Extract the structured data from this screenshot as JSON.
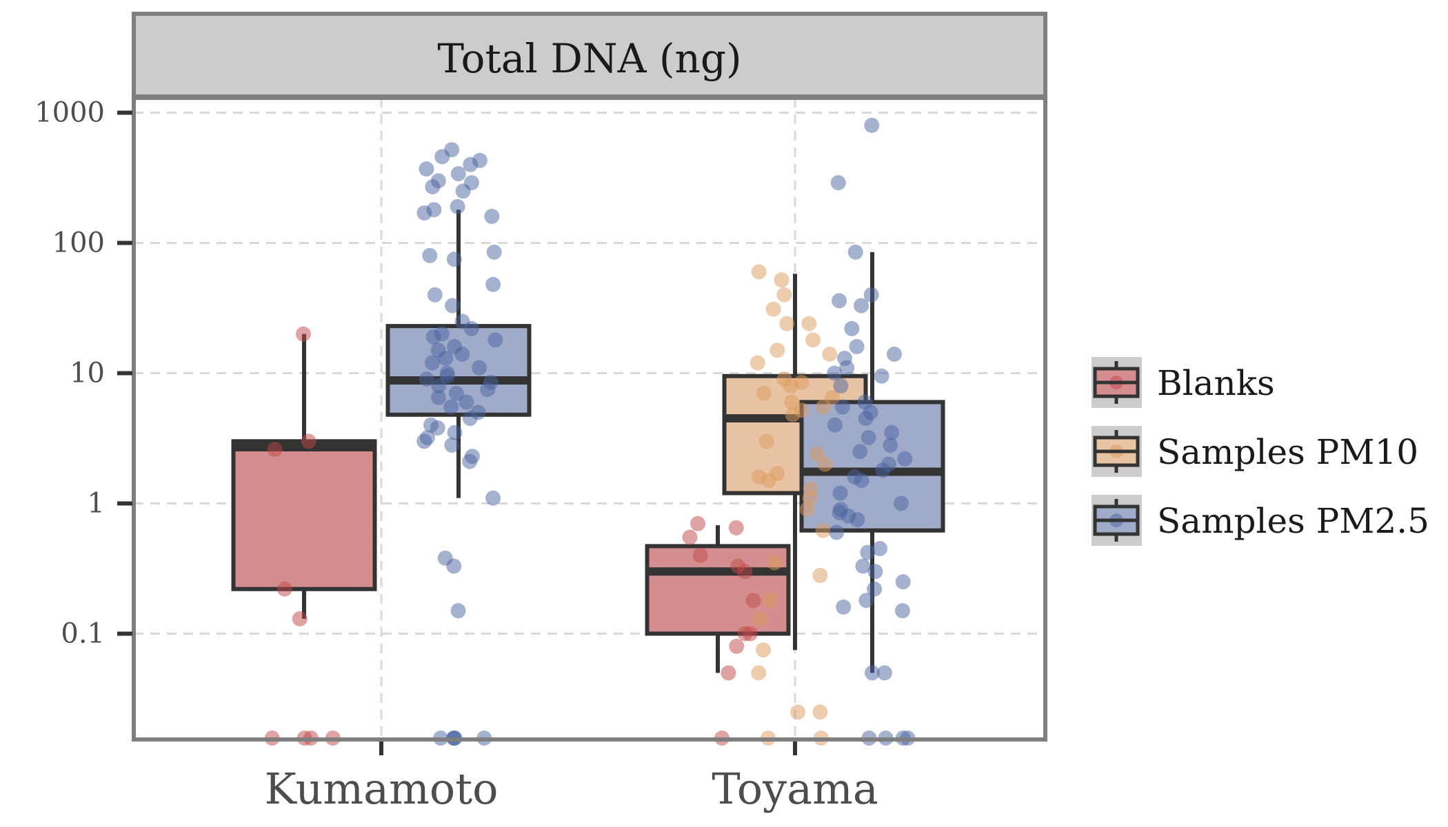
{
  "chart_data": {
    "type": "box",
    "title": "Total DNA (ng)",
    "xlabel": "",
    "ylabel": "",
    "yscale": "log10",
    "ylim": [
      0.0154,
      1300
    ],
    "yticks": [
      0.1,
      1,
      10,
      100,
      1000
    ],
    "ytick_labels": [
      "0.1",
      "1",
      "10",
      "100",
      "1000"
    ],
    "categories": [
      "Kumamoto",
      "Toyama"
    ],
    "grid": true,
    "legend": {
      "position": "right",
      "entries": [
        {
          "name": "Blanks",
          "color": "#c0474a"
        },
        {
          "name": "Samples PM10",
          "color": "#dd9a5e"
        },
        {
          "name": "Samples PM2.5",
          "color": "#4a64a0"
        }
      ]
    },
    "groups": [
      {
        "category": "Kumamoto",
        "series": "Blanks",
        "box": {
          "whisker_low": 0.13,
          "q1": 0.22,
          "median": 2.7,
          "q3": 3.0,
          "whisker_high": 20
        },
        "points": [
          20,
          3.0,
          2.6,
          0.22,
          0.13,
          0.015,
          0.015,
          0.015,
          0.015
        ]
      },
      {
        "category": "Kumamoto",
        "series": "Samples PM2.5",
        "box": {
          "whisker_low": 1.1,
          "q1": 4.8,
          "median": 8.8,
          "q3": 23,
          "whisker_high": 180
        },
        "points": [
          520,
          460,
          430,
          400,
          370,
          340,
          300,
          290,
          270,
          250,
          190,
          180,
          170,
          160,
          85,
          80,
          75,
          48,
          40,
          33,
          25,
          22,
          20,
          19,
          18,
          16,
          15,
          14,
          13,
          12,
          11,
          10,
          9.5,
          9,
          8.5,
          8,
          7.5,
          7,
          6.5,
          6,
          5.5,
          5,
          4.5,
          4,
          3.8,
          3.5,
          3.2,
          3.0,
          2.8,
          2.3,
          2.1,
          1.1,
          0.38,
          0.33,
          0.15,
          0.015,
          0.015,
          0.015,
          0.015,
          0.015
        ]
      },
      {
        "category": "Toyama",
        "series": "Blanks",
        "box": {
          "whisker_low": 0.05,
          "q1": 0.1,
          "median": 0.3,
          "q3": 0.47,
          "whisker_high": 0.68
        },
        "points": [
          0.7,
          0.65,
          0.55,
          0.4,
          0.33,
          0.3,
          0.18,
          0.1,
          0.1,
          0.08,
          0.05,
          0.015
        ]
      },
      {
        "category": "Toyama",
        "series": "Samples PM10",
        "box": {
          "whisker_low": 0.075,
          "q1": 1.2,
          "median": 4.5,
          "q3": 9.5,
          "whisker_high": 58
        },
        "points": [
          60,
          52,
          40,
          31,
          24,
          24,
          18,
          15,
          14,
          12,
          9,
          8.5,
          8,
          7,
          6.5,
          6,
          5.5,
          5.2,
          4.8,
          3,
          2.4,
          2,
          1.7,
          1.6,
          1.5,
          1.3,
          1.1,
          0.9,
          0.62,
          0.35,
          0.28,
          0.18,
          0.13,
          0.075,
          0.05,
          0.025,
          0.025,
          0.015,
          0.015
        ]
      },
      {
        "category": "Toyama",
        "series": "Samples PM2.5",
        "box": {
          "whisker_low": 0.05,
          "q1": 0.62,
          "median": 1.75,
          "q3": 6.0,
          "whisker_high": 85
        },
        "points": [
          800,
          290,
          85,
          40,
          36,
          33,
          22,
          16,
          14,
          13,
          11,
          10,
          9.5,
          8,
          6,
          5.5,
          5,
          4.5,
          4,
          3.5,
          3.2,
          2.8,
          2.5,
          2.2,
          2,
          1.8,
          1.6,
          1.5,
          1.2,
          1,
          0.9,
          0.85,
          0.8,
          0.75,
          0.6,
          0.45,
          0.42,
          0.33,
          0.3,
          0.25,
          0.22,
          0.18,
          0.16,
          0.15,
          0.05,
          0.05,
          0.015,
          0.015,
          0.015,
          0.015
        ]
      }
    ]
  }
}
